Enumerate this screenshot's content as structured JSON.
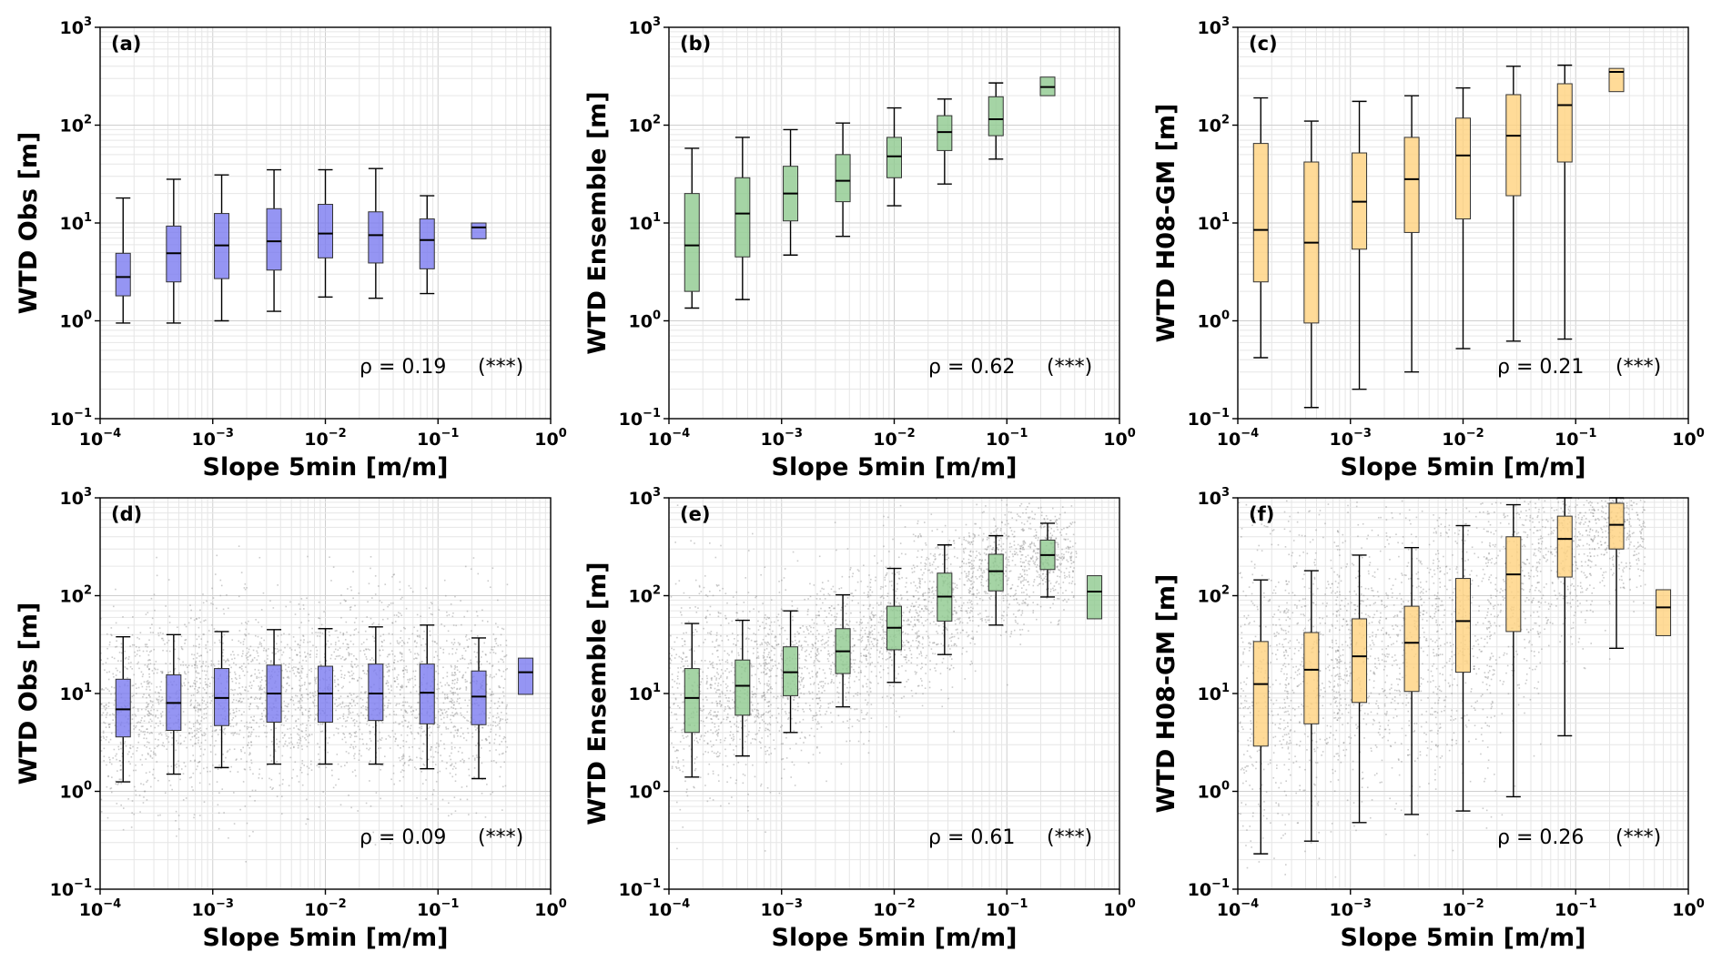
{
  "colors": {
    "blue": "#7b7bf0",
    "green": "#8ec98e",
    "orange": "#ffd27e",
    "scatter": "#8c8c8c",
    "grid": "#dcdcdc"
  },
  "chart_data": [
    {
      "type": "box",
      "panel": "(a)",
      "ylabel": "WTD Obs [m]",
      "xlabel": "Slope 5min [m/m]",
      "xscale": "log",
      "yscale": "log",
      "xlim": [
        0.0001,
        1
      ],
      "ylim": [
        0.1,
        1000
      ],
      "x_ticks": [
        "10^-4",
        "10^-3",
        "10^-2",
        "10^-1",
        "10^0"
      ],
      "y_ticks": [
        "10^-1",
        "10^0",
        "10^1",
        "10^2",
        "10^3"
      ],
      "color": "blue",
      "scatter": false,
      "rho_text": "ρ = 0.19",
      "sig_text": "(***)",
      "boxes": [
        {
          "x": 0.00016,
          "whislo": 0.95,
          "q1": 1.8,
          "med": 2.8,
          "q3": 4.9,
          "whishi": 18
        },
        {
          "x": 0.00045,
          "whislo": 0.95,
          "q1": 2.5,
          "med": 4.9,
          "q3": 9.3,
          "whishi": 28
        },
        {
          "x": 0.0012,
          "whislo": 1.0,
          "q1": 2.7,
          "med": 5.9,
          "q3": 12.5,
          "whishi": 31
        },
        {
          "x": 0.0035,
          "whislo": 1.25,
          "q1": 3.3,
          "med": 6.5,
          "q3": 14,
          "whishi": 35
        },
        {
          "x": 0.01,
          "whislo": 1.75,
          "q1": 4.4,
          "med": 7.8,
          "q3": 15.5,
          "whishi": 35
        },
        {
          "x": 0.028,
          "whislo": 1.7,
          "q1": 3.9,
          "med": 7.5,
          "q3": 13,
          "whishi": 36
        },
        {
          "x": 0.08,
          "whislo": 1.9,
          "q1": 3.4,
          "med": 6.7,
          "q3": 11,
          "whishi": 19
        },
        {
          "x": 0.23,
          "whislo": null,
          "q1": 6.9,
          "med": 9.0,
          "q3": 10,
          "whishi": null
        }
      ]
    },
    {
      "type": "box",
      "panel": "(b)",
      "ylabel": "WTD Ensemble [m]",
      "xlabel": "Slope 5min [m/m]",
      "xscale": "log",
      "yscale": "log",
      "xlim": [
        0.0001,
        1
      ],
      "ylim": [
        0.1,
        1000
      ],
      "x_ticks": [
        "10^-4",
        "10^-3",
        "10^-2",
        "10^-1",
        "10^0"
      ],
      "y_ticks": [
        "10^-1",
        "10^0",
        "10^1",
        "10^2",
        "10^3"
      ],
      "color": "green",
      "scatter": false,
      "rho_text": "ρ = 0.62",
      "sig_text": "(***)",
      "boxes": [
        {
          "x": 0.00016,
          "whislo": 1.35,
          "q1": 2.0,
          "med": 5.9,
          "q3": 20,
          "whishi": 58
        },
        {
          "x": 0.00045,
          "whislo": 1.65,
          "q1": 4.5,
          "med": 12.5,
          "q3": 29,
          "whishi": 75
        },
        {
          "x": 0.0012,
          "whislo": 4.7,
          "q1": 10.5,
          "med": 20,
          "q3": 38,
          "whishi": 90
        },
        {
          "x": 0.0035,
          "whislo": 7.3,
          "q1": 16.5,
          "med": 27,
          "q3": 50,
          "whishi": 105
        },
        {
          "x": 0.01,
          "whislo": 15,
          "q1": 29,
          "med": 48,
          "q3": 75,
          "whishi": 150
        },
        {
          "x": 0.028,
          "whislo": 25,
          "q1": 55,
          "med": 85,
          "q3": 125,
          "whishi": 185
        },
        {
          "x": 0.08,
          "whislo": 45,
          "q1": 78,
          "med": 115,
          "q3": 195,
          "whishi": 270
        },
        {
          "x": 0.23,
          "whislo": null,
          "q1": 200,
          "med": 245,
          "q3": 310,
          "whishi": null
        }
      ]
    },
    {
      "type": "box",
      "panel": "(c)",
      "ylabel": "WTD H08-GM [m]",
      "xlabel": "Slope 5min [m/m]",
      "xscale": "log",
      "yscale": "log",
      "xlim": [
        0.0001,
        1
      ],
      "ylim": [
        0.1,
        1000
      ],
      "x_ticks": [
        "10^-4",
        "10^-3",
        "10^-2",
        "10^-1",
        "10^0"
      ],
      "y_ticks": [
        "10^-1",
        "10^0",
        "10^1",
        "10^2",
        "10^3"
      ],
      "color": "orange",
      "scatter": false,
      "rho_text": "ρ = 0.21",
      "sig_text": "(***)",
      "boxes": [
        {
          "x": 0.00016,
          "whislo": 0.42,
          "q1": 2.5,
          "med": 8.5,
          "q3": 65,
          "whishi": 190
        },
        {
          "x": 0.00045,
          "whislo": 0.13,
          "q1": 0.95,
          "med": 6.3,
          "q3": 42,
          "whishi": 110
        },
        {
          "x": 0.0012,
          "whislo": 0.2,
          "q1": 5.4,
          "med": 16.5,
          "q3": 52,
          "whishi": 175
        },
        {
          "x": 0.0035,
          "whislo": 0.3,
          "q1": 8.0,
          "med": 28,
          "q3": 75,
          "whishi": 200
        },
        {
          "x": 0.01,
          "whislo": 0.52,
          "q1": 11,
          "med": 49,
          "q3": 118,
          "whishi": 240
        },
        {
          "x": 0.028,
          "whislo": 0.62,
          "q1": 19,
          "med": 78,
          "q3": 205,
          "whishi": 400
        },
        {
          "x": 0.08,
          "whislo": 0.65,
          "q1": 42,
          "med": 160,
          "q3": 265,
          "whishi": 410
        },
        {
          "x": 0.23,
          "whislo": null,
          "q1": 220,
          "med": 350,
          "q3": 380,
          "whishi": null
        }
      ]
    },
    {
      "type": "box",
      "panel": "(d)",
      "ylabel": "WTD Obs [m]",
      "xlabel": "Slope 5min [m/m]",
      "xscale": "log",
      "yscale": "log",
      "xlim": [
        0.0001,
        1
      ],
      "ylim": [
        0.1,
        1000
      ],
      "x_ticks": [
        "10^-4",
        "10^-3",
        "10^-2",
        "10^-1",
        "10^0"
      ],
      "y_ticks": [
        "10^-1",
        "10^0",
        "10^1",
        "10^2",
        "10^3"
      ],
      "color": "blue",
      "scatter": true,
      "rho_text": "ρ = 0.09",
      "sig_text": "(***)",
      "boxes": [
        {
          "x": 0.00016,
          "whislo": 1.25,
          "q1": 3.6,
          "med": 6.9,
          "q3": 14,
          "whishi": 38
        },
        {
          "x": 0.00045,
          "whislo": 1.5,
          "q1": 4.2,
          "med": 8.0,
          "q3": 15.5,
          "whishi": 40
        },
        {
          "x": 0.0012,
          "whislo": 1.75,
          "q1": 4.7,
          "med": 9.0,
          "q3": 18,
          "whishi": 43
        },
        {
          "x": 0.0035,
          "whislo": 1.9,
          "q1": 5.1,
          "med": 10,
          "q3": 19.5,
          "whishi": 45
        },
        {
          "x": 0.01,
          "whislo": 1.9,
          "q1": 5.1,
          "med": 10,
          "q3": 19,
          "whishi": 46
        },
        {
          "x": 0.028,
          "whislo": 1.9,
          "q1": 5.3,
          "med": 10,
          "q3": 20,
          "whishi": 48
        },
        {
          "x": 0.08,
          "whislo": 1.7,
          "q1": 4.9,
          "med": 10.2,
          "q3": 20,
          "whishi": 50
        },
        {
          "x": 0.23,
          "whislo": 1.35,
          "q1": 4.8,
          "med": 9.3,
          "q3": 17,
          "whishi": 37
        },
        {
          "x": 0.6,
          "whislo": null,
          "q1": 9.8,
          "med": 16.5,
          "q3": 23,
          "whishi": null
        }
      ]
    },
    {
      "type": "box",
      "panel": "(e)",
      "ylabel": "WTD Ensemble [m]",
      "xlabel": "Slope 5min [m/m]",
      "xscale": "log",
      "yscale": "log",
      "xlim": [
        0.0001,
        1
      ],
      "ylim": [
        0.1,
        1000
      ],
      "x_ticks": [
        "10^-4",
        "10^-3",
        "10^-2",
        "10^-1",
        "10^0"
      ],
      "y_ticks": [
        "10^-1",
        "10^0",
        "10^1",
        "10^2",
        "10^3"
      ],
      "color": "green",
      "scatter": true,
      "rho_text": "ρ = 0.61",
      "sig_text": "(***)",
      "boxes": [
        {
          "x": 0.00016,
          "whislo": 1.4,
          "q1": 4.0,
          "med": 9.0,
          "q3": 18,
          "whishi": 52
        },
        {
          "x": 0.00045,
          "whislo": 2.3,
          "q1": 6.0,
          "med": 12,
          "q3": 22,
          "whishi": 56
        },
        {
          "x": 0.0012,
          "whislo": 4.0,
          "q1": 9.5,
          "med": 16.5,
          "q3": 30,
          "whishi": 70
        },
        {
          "x": 0.0035,
          "whislo": 7.3,
          "q1": 16,
          "med": 27,
          "q3": 46,
          "whishi": 102
        },
        {
          "x": 0.01,
          "whislo": 13,
          "q1": 28,
          "med": 47,
          "q3": 78,
          "whishi": 190
        },
        {
          "x": 0.028,
          "whislo": 25,
          "q1": 55,
          "med": 98,
          "q3": 170,
          "whishi": 330
        },
        {
          "x": 0.08,
          "whislo": 50,
          "q1": 112,
          "med": 178,
          "q3": 265,
          "whishi": 410
        },
        {
          "x": 0.23,
          "whislo": 97,
          "q1": 185,
          "med": 260,
          "q3": 370,
          "whishi": 550
        },
        {
          "x": 0.6,
          "whislo": null,
          "q1": 58,
          "med": 110,
          "q3": 160,
          "whishi": null
        }
      ]
    },
    {
      "type": "box",
      "panel": "(f)",
      "ylabel": "WTD H08-GM [m]",
      "xlabel": "Slope 5min [m/m]",
      "xscale": "log",
      "yscale": "log",
      "xlim": [
        0.0001,
        1
      ],
      "ylim": [
        0.1,
        1000
      ],
      "x_ticks": [
        "10^-4",
        "10^-3",
        "10^-2",
        "10^-1",
        "10^0"
      ],
      "y_ticks": [
        "10^-1",
        "10^0",
        "10^1",
        "10^2",
        "10^3"
      ],
      "color": "orange",
      "scatter": true,
      "rho_text": "ρ = 0.26",
      "sig_text": "(***)",
      "boxes": [
        {
          "x": 0.00016,
          "whislo": 0.23,
          "q1": 2.9,
          "med": 12.5,
          "q3": 34,
          "whishi": 145
        },
        {
          "x": 0.00045,
          "whislo": 0.31,
          "q1": 4.9,
          "med": 17.5,
          "q3": 42,
          "whishi": 180
        },
        {
          "x": 0.0012,
          "whislo": 0.48,
          "q1": 8.1,
          "med": 24,
          "q3": 58,
          "whishi": 260
        },
        {
          "x": 0.0035,
          "whislo": 0.58,
          "q1": 10.5,
          "med": 33,
          "q3": 78,
          "whishi": 310
        },
        {
          "x": 0.01,
          "whislo": 0.63,
          "q1": 16.5,
          "med": 55,
          "q3": 150,
          "whishi": 520
        },
        {
          "x": 0.028,
          "whislo": 0.88,
          "q1": 43,
          "med": 165,
          "q3": 400,
          "whishi": 850
        },
        {
          "x": 0.08,
          "whislo": 3.7,
          "q1": 155,
          "med": 380,
          "q3": 650,
          "whishi": 1000
        },
        {
          "x": 0.23,
          "whislo": 29,
          "q1": 300,
          "med": 530,
          "q3": 880,
          "whishi": 1000
        },
        {
          "x": 0.6,
          "whislo": null,
          "q1": 39,
          "med": 76,
          "q3": 115,
          "whishi": null
        }
      ]
    }
  ]
}
